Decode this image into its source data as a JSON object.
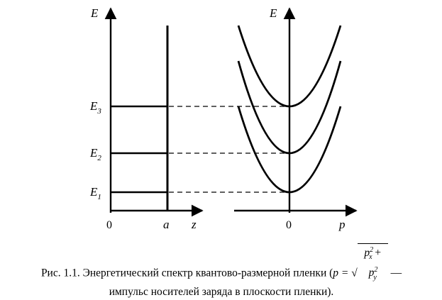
{
  "figure": {
    "left": {
      "axis_y": "E",
      "axis_x": "z",
      "origin": "0",
      "well_edge": "a",
      "levels": [
        "E3",
        "E2",
        "E1"
      ],
      "level_subs": [
        "3",
        "2",
        "1"
      ],
      "level_letter": "E"
    },
    "right": {
      "axis_y": "E",
      "axis_x": "p",
      "origin": "0",
      "subbands": 3
    }
  },
  "caption": {
    "prefix": "Рис. 1.1. Энергетический спектр квантово-размерной пленки (",
    "formula_lhs": "p = ",
    "formula_px": "p",
    "formula_px_sub": "x",
    "formula_plus": " + ",
    "formula_py": "p",
    "formula_py_sub": "y",
    "formula_pow": "2",
    "suffix": " —",
    "line2": "импульс носителей заряда в плоскости пленки)."
  }
}
